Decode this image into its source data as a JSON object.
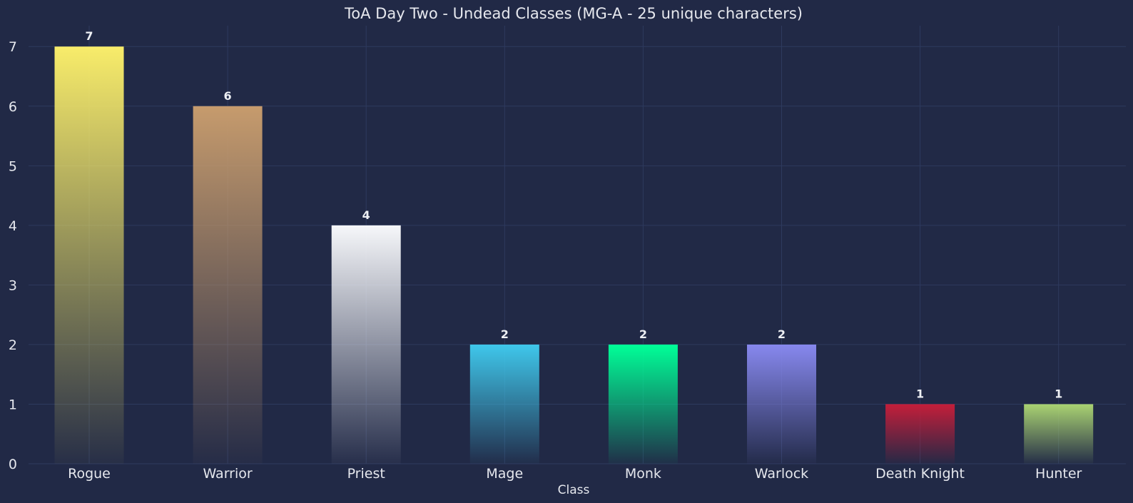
{
  "chart_data": {
    "type": "bar",
    "title": "ToA Day Two - Undead Classes (MG-A - 25 unique characters)",
    "xlabel": "Class",
    "ylabel": "",
    "categories": [
      "Rogue",
      "Warrior",
      "Priest",
      "Mage",
      "Monk",
      "Warlock",
      "Death Knight",
      "Hunter"
    ],
    "values": [
      7,
      6,
      4,
      2,
      2,
      2,
      1,
      1
    ],
    "colors": [
      "#f8ec6a",
      "#c69b6d",
      "#f6f7fa",
      "#3fc7eb",
      "#00ff98",
      "#8788ee",
      "#c41e3a",
      "#aad372"
    ],
    "yticks": [
      0,
      1,
      2,
      3,
      4,
      5,
      6,
      7
    ],
    "ylim": [
      0,
      7.35
    ],
    "grid": true,
    "background": "#212946"
  }
}
